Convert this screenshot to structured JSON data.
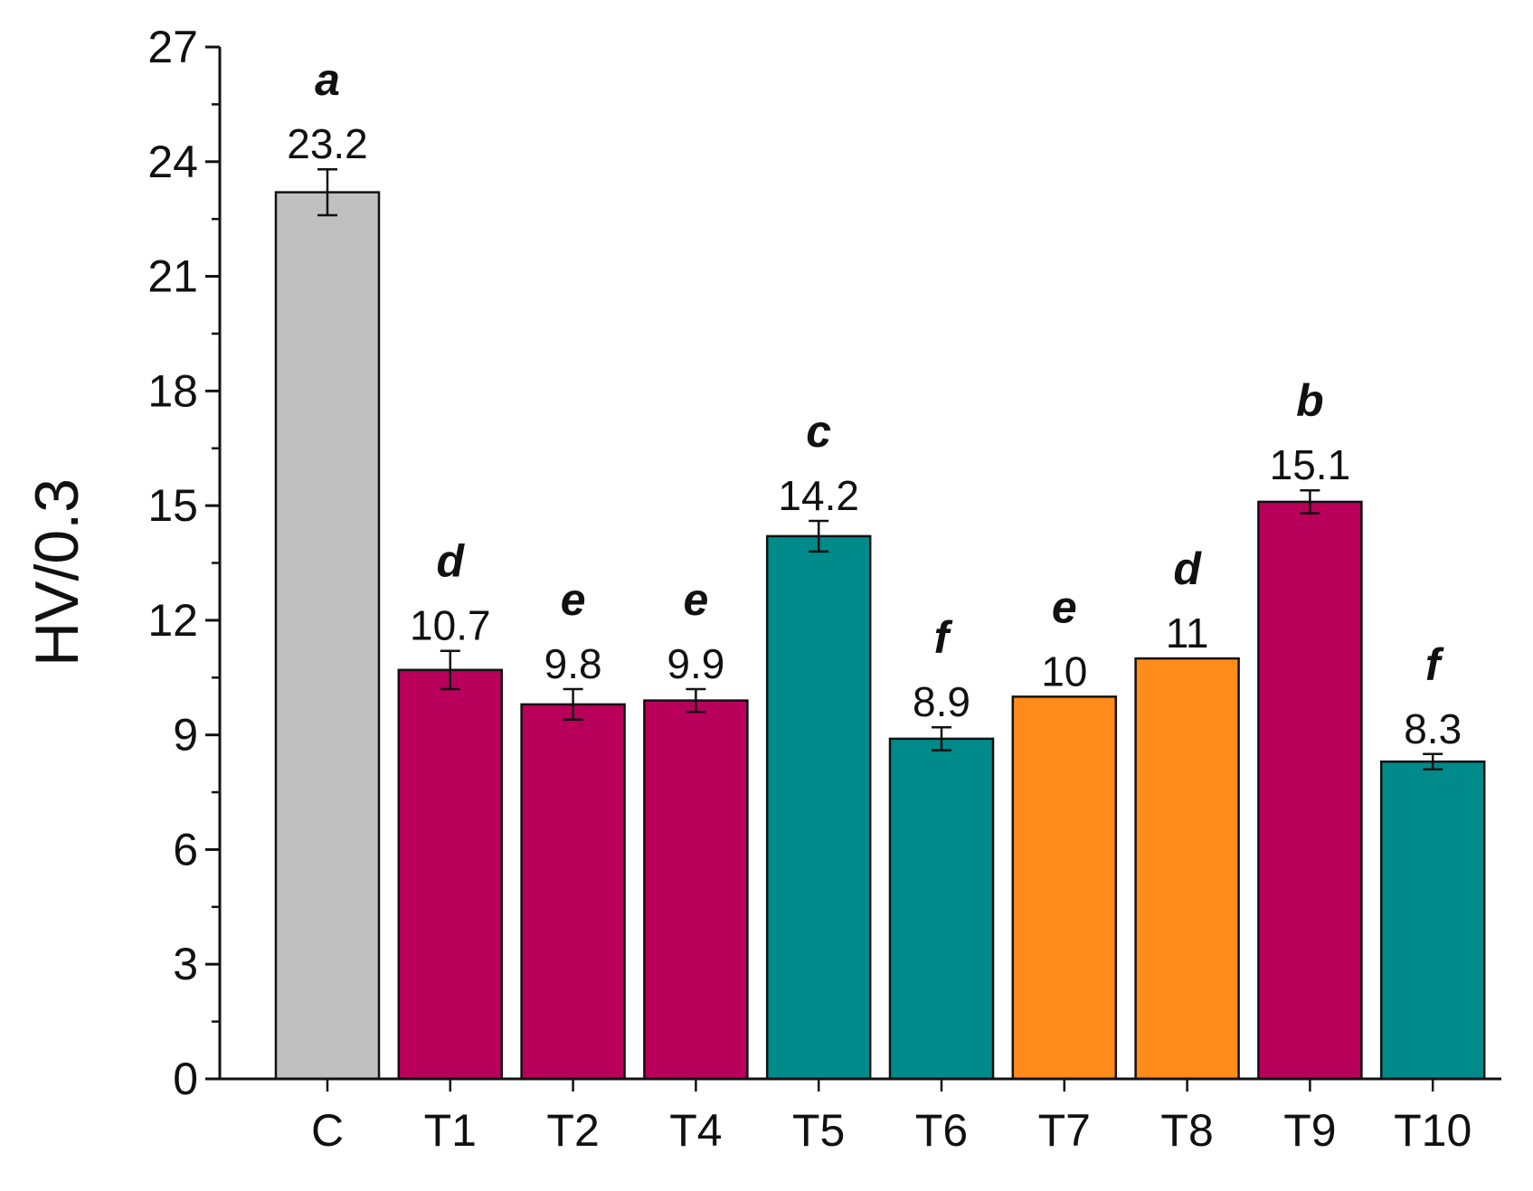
{
  "chart_data": {
    "type": "bar",
    "title": "",
    "xlabel": "",
    "ylabel": "HV/0.3",
    "ylim": [
      0,
      27
    ],
    "yticks": [
      0,
      3,
      6,
      9,
      12,
      15,
      18,
      21,
      24,
      27
    ],
    "ytick_labels": [
      "0",
      "3",
      "6",
      "9",
      "12",
      "15",
      "18",
      "21",
      "24",
      "27"
    ],
    "grid": false,
    "categories": [
      "C",
      "T1",
      "T2",
      "T4",
      "T5",
      "T6",
      "T7",
      "T8",
      "T9",
      "T10"
    ],
    "values": [
      23.2,
      10.7,
      9.8,
      9.9,
      14.2,
      8.9,
      10,
      11,
      15.1,
      8.3
    ],
    "value_labels": [
      "23.2",
      "10.7",
      "9.8",
      "9.9",
      "14.2",
      "8.9",
      "10",
      "11",
      "15.1",
      "8.3"
    ],
    "errors": [
      0.6,
      0.5,
      0.4,
      0.3,
      0.4,
      0.3,
      0,
      0,
      0.3,
      0.2
    ],
    "group_letters": [
      "a",
      "d",
      "e",
      "e",
      "c",
      "f",
      "e",
      "d",
      "b",
      "f"
    ],
    "colors": [
      "#c0c0c0",
      "#b8005a",
      "#b8005a",
      "#b8005a",
      "#008a8a",
      "#008a8a",
      "#ff8c1a",
      "#ff8c1a",
      "#b8005a",
      "#008a8a"
    ]
  }
}
